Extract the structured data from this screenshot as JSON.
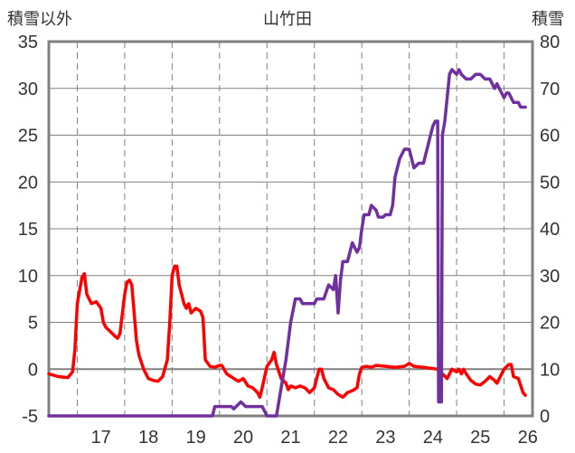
{
  "chart_data": {
    "type": "line",
    "title": "山竹田",
    "y_left_label": "積雪以外",
    "y_right_label": "積雪",
    "y_left_range": [
      -5,
      35
    ],
    "y_right_range": [
      0,
      80
    ],
    "y_left_ticks": [
      -5,
      0,
      5,
      10,
      15,
      20,
      25,
      30,
      35
    ],
    "y_right_ticks": [
      0,
      10,
      20,
      30,
      40,
      50,
      60,
      70,
      80
    ],
    "x_range": [
      16.4,
      26.6
    ],
    "x_ticks": [
      "17",
      "18",
      "19",
      "20",
      "21",
      "22",
      "23",
      "24",
      "25",
      "26"
    ],
    "grid": true,
    "colors": {
      "temperature": "#ff0000",
      "snow": "#7030a0",
      "grid": "#808080",
      "zero_line": "#808080"
    },
    "series": [
      {
        "axis": "left",
        "color": "#ff0000",
        "points": [
          [
            16.4,
            -0.5
          ],
          [
            16.6,
            -0.8
          ],
          [
            16.8,
            -0.9
          ],
          [
            16.9,
            -0.3
          ],
          [
            16.95,
            2
          ],
          [
            17.0,
            7
          ],
          [
            17.1,
            9.8
          ],
          [
            17.15,
            10.2
          ],
          [
            17.2,
            8
          ],
          [
            17.3,
            7
          ],
          [
            17.4,
            7.2
          ],
          [
            17.5,
            6.5
          ],
          [
            17.55,
            5
          ],
          [
            17.6,
            4.5
          ],
          [
            17.7,
            4
          ],
          [
            17.8,
            3.5
          ],
          [
            17.85,
            3.3
          ],
          [
            17.9,
            3.8
          ],
          [
            18.0,
            8
          ],
          [
            18.05,
            9.3
          ],
          [
            18.1,
            9.5
          ],
          [
            18.15,
            9
          ],
          [
            18.2,
            6
          ],
          [
            18.25,
            3
          ],
          [
            18.3,
            1.5
          ],
          [
            18.4,
            0
          ],
          [
            18.5,
            -1
          ],
          [
            18.6,
            -1.2
          ],
          [
            18.7,
            -1.3
          ],
          [
            18.8,
            -0.8
          ],
          [
            18.9,
            1
          ],
          [
            18.95,
            5
          ],
          [
            19.0,
            10
          ],
          [
            19.05,
            11
          ],
          [
            19.1,
            11
          ],
          [
            19.15,
            9
          ],
          [
            19.25,
            7
          ],
          [
            19.3,
            6.5
          ],
          [
            19.35,
            7
          ],
          [
            19.4,
            6
          ],
          [
            19.5,
            6.5
          ],
          [
            19.6,
            6.2
          ],
          [
            19.65,
            5.5
          ],
          [
            19.7,
            1
          ],
          [
            19.8,
            0.3
          ],
          [
            19.9,
            0.2
          ],
          [
            20.0,
            0.4
          ],
          [
            20.05,
            0.4
          ],
          [
            20.15,
            -0.5
          ],
          [
            20.3,
            -1
          ],
          [
            20.4,
            -1.3
          ],
          [
            20.5,
            -1
          ],
          [
            20.6,
            -1.8
          ],
          [
            20.7,
            -2
          ],
          [
            20.8,
            -2.5
          ],
          [
            20.85,
            -3
          ],
          [
            20.9,
            -2
          ],
          [
            21.0,
            0.3
          ],
          [
            21.1,
            1
          ],
          [
            21.15,
            1.8
          ],
          [
            21.2,
            0.5
          ],
          [
            21.3,
            -1
          ],
          [
            21.4,
            -1.5
          ],
          [
            21.45,
            -2.2
          ],
          [
            21.5,
            -1.8
          ],
          [
            21.6,
            -2
          ],
          [
            21.7,
            -1.8
          ],
          [
            21.8,
            -2
          ],
          [
            21.9,
            -2.5
          ],
          [
            22.0,
            -2
          ],
          [
            22.05,
            -1
          ],
          [
            22.1,
            0
          ],
          [
            22.15,
            0
          ],
          [
            22.2,
            -1
          ],
          [
            22.3,
            -2
          ],
          [
            22.4,
            -2.2
          ],
          [
            22.5,
            -2.7
          ],
          [
            22.6,
            -3
          ],
          [
            22.7,
            -2.5
          ],
          [
            22.8,
            -2.3
          ],
          [
            22.9,
            -2
          ],
          [
            22.95,
            -0.5
          ],
          [
            23.0,
            0.2
          ],
          [
            23.1,
            0.3
          ],
          [
            23.2,
            0.2
          ],
          [
            23.3,
            0.4
          ],
          [
            23.5,
            0.3
          ],
          [
            23.7,
            0.2
          ],
          [
            23.9,
            0.3
          ],
          [
            24.0,
            0.6
          ],
          [
            24.1,
            0.3
          ],
          [
            24.3,
            0.2
          ],
          [
            24.6,
            0
          ],
          [
            24.7,
            -0.5
          ],
          [
            24.8,
            -1
          ],
          [
            24.9,
            0
          ],
          [
            25.0,
            -0.3
          ],
          [
            25.05,
            0
          ],
          [
            25.1,
            -0.5
          ],
          [
            25.15,
            0
          ],
          [
            25.2,
            -0.5
          ],
          [
            25.3,
            -1.2
          ],
          [
            25.4,
            -1.6
          ],
          [
            25.5,
            -1.7
          ],
          [
            25.6,
            -1.3
          ],
          [
            25.7,
            -0.8
          ],
          [
            25.8,
            -1.2
          ],
          [
            25.85,
            -1.5
          ],
          [
            25.9,
            -1
          ],
          [
            26.0,
            0
          ],
          [
            26.1,
            0.5
          ],
          [
            26.15,
            0.5
          ],
          [
            26.2,
            -0.8
          ],
          [
            26.3,
            -1
          ],
          [
            26.4,
            -2.5
          ],
          [
            26.45,
            -2.8
          ]
        ]
      },
      {
        "axis": "right",
        "color": "#7030a0",
        "points": [
          [
            16.4,
            0
          ],
          [
            19.85,
            0
          ],
          [
            19.9,
            2
          ],
          [
            20.25,
            2
          ],
          [
            20.3,
            1.5
          ],
          [
            20.35,
            2
          ],
          [
            20.45,
            3
          ],
          [
            20.55,
            2
          ],
          [
            20.9,
            2
          ],
          [
            21.0,
            0
          ],
          [
            21.2,
            0
          ],
          [
            21.3,
            6
          ],
          [
            21.4,
            12
          ],
          [
            21.5,
            20
          ],
          [
            21.6,
            25
          ],
          [
            21.7,
            25
          ],
          [
            21.75,
            24
          ],
          [
            22.0,
            24
          ],
          [
            22.05,
            25
          ],
          [
            22.2,
            25
          ],
          [
            22.3,
            28
          ],
          [
            22.4,
            27
          ],
          [
            22.45,
            30
          ],
          [
            22.5,
            22
          ],
          [
            22.55,
            29
          ],
          [
            22.6,
            33
          ],
          [
            22.7,
            33
          ],
          [
            22.8,
            37
          ],
          [
            22.9,
            35
          ],
          [
            22.95,
            36
          ],
          [
            23.0,
            40
          ],
          [
            23.05,
            43
          ],
          [
            23.15,
            43
          ],
          [
            23.2,
            45
          ],
          [
            23.3,
            44
          ],
          [
            23.35,
            42.5
          ],
          [
            23.45,
            42.5
          ],
          [
            23.5,
            43
          ],
          [
            23.6,
            43
          ],
          [
            23.65,
            45
          ],
          [
            23.7,
            51
          ],
          [
            23.8,
            55
          ],
          [
            23.9,
            57
          ],
          [
            24.0,
            57
          ],
          [
            24.1,
            53
          ],
          [
            24.2,
            54
          ],
          [
            24.3,
            54
          ],
          [
            24.4,
            58
          ],
          [
            24.45,
            60
          ],
          [
            24.5,
            62
          ],
          [
            24.55,
            63
          ],
          [
            24.6,
            63
          ],
          [
            24.62,
            3
          ],
          [
            24.68,
            3
          ],
          [
            24.7,
            60
          ],
          [
            24.75,
            63
          ],
          [
            24.8,
            68
          ],
          [
            24.85,
            73
          ],
          [
            24.9,
            74
          ],
          [
            25.0,
            73
          ],
          [
            25.05,
            74
          ],
          [
            25.1,
            73
          ],
          [
            25.2,
            72
          ],
          [
            25.3,
            72
          ],
          [
            25.4,
            73
          ],
          [
            25.5,
            73
          ],
          [
            25.6,
            72
          ],
          [
            25.7,
            72
          ],
          [
            25.75,
            71
          ],
          [
            25.8,
            70
          ],
          [
            25.85,
            71
          ],
          [
            26.0,
            68
          ],
          [
            26.05,
            69
          ],
          [
            26.1,
            69
          ],
          [
            26.2,
            67
          ],
          [
            26.3,
            67
          ],
          [
            26.35,
            66
          ],
          [
            26.45,
            66
          ]
        ]
      }
    ]
  }
}
